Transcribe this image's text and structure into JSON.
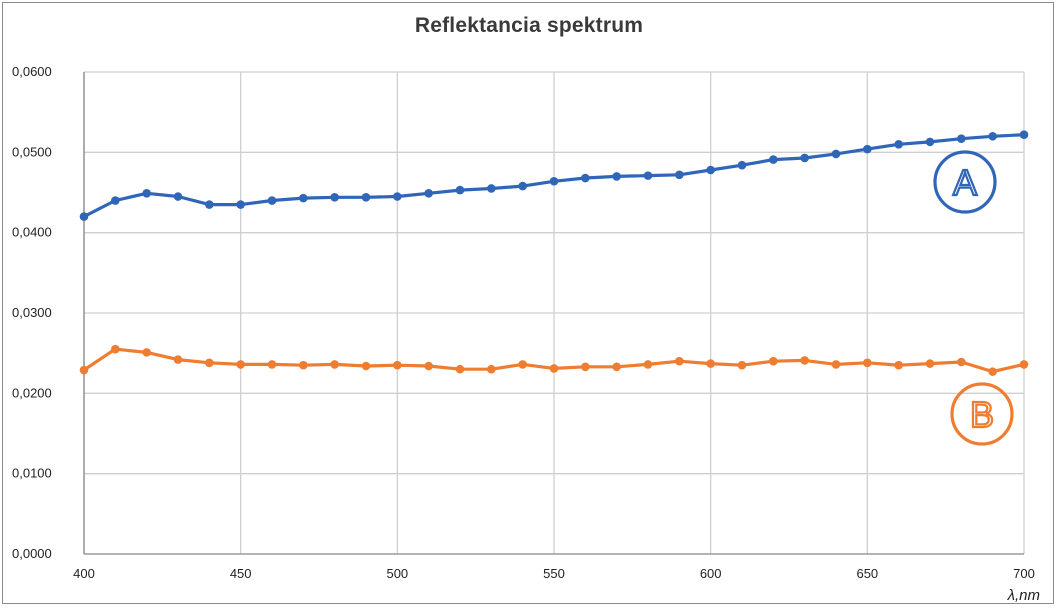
{
  "chart_data": {
    "type": "line",
    "title": "Reflektancia spektrum",
    "xlabel": "λ,nm",
    "ylabel": "",
    "xlim": [
      400,
      700
    ],
    "ylim": [
      0,
      0.06
    ],
    "x_ticks": [
      400,
      450,
      500,
      550,
      600,
      650,
      700
    ],
    "y_ticks": [
      0,
      0.01,
      0.02,
      0.03,
      0.04,
      0.05,
      0.06
    ],
    "y_tick_labels": [
      "0,0000",
      "0,0100",
      "0,0200",
      "0,0300",
      "0,0400",
      "0,0500",
      "0,0600"
    ],
    "x_tick_labels": [
      "400",
      "450",
      "500",
      "550",
      "600",
      "650",
      "700"
    ],
    "grid": true,
    "x": [
      400,
      410,
      420,
      430,
      440,
      450,
      460,
      470,
      480,
      490,
      500,
      510,
      520,
      530,
      540,
      550,
      560,
      570,
      580,
      590,
      600,
      610,
      620,
      630,
      640,
      650,
      660,
      670,
      680,
      690,
      700
    ],
    "series": [
      {
        "name": "A",
        "color": "#2f66b8",
        "values": [
          0.042,
          0.044,
          0.0449,
          0.0445,
          0.0435,
          0.0435,
          0.044,
          0.0443,
          0.0444,
          0.0444,
          0.0445,
          0.0449,
          0.0453,
          0.0455,
          0.0458,
          0.0464,
          0.0468,
          0.047,
          0.0471,
          0.0472,
          0.0478,
          0.0484,
          0.0491,
          0.0493,
          0.0498,
          0.0504,
          0.051,
          0.0513,
          0.0517,
          0.052,
          0.0522
        ]
      },
      {
        "name": "B",
        "color": "#ee7d31",
        "values": [
          0.0229,
          0.0255,
          0.0251,
          0.0242,
          0.0238,
          0.0236,
          0.0236,
          0.0235,
          0.0236,
          0.0234,
          0.0235,
          0.0234,
          0.023,
          0.023,
          0.0236,
          0.0231,
          0.0233,
          0.0233,
          0.0236,
          0.024,
          0.0237,
          0.0235,
          0.024,
          0.0241,
          0.0236,
          0.0238,
          0.0235,
          0.0237,
          0.0239,
          0.0227,
          0.0236
        ]
      }
    ]
  }
}
